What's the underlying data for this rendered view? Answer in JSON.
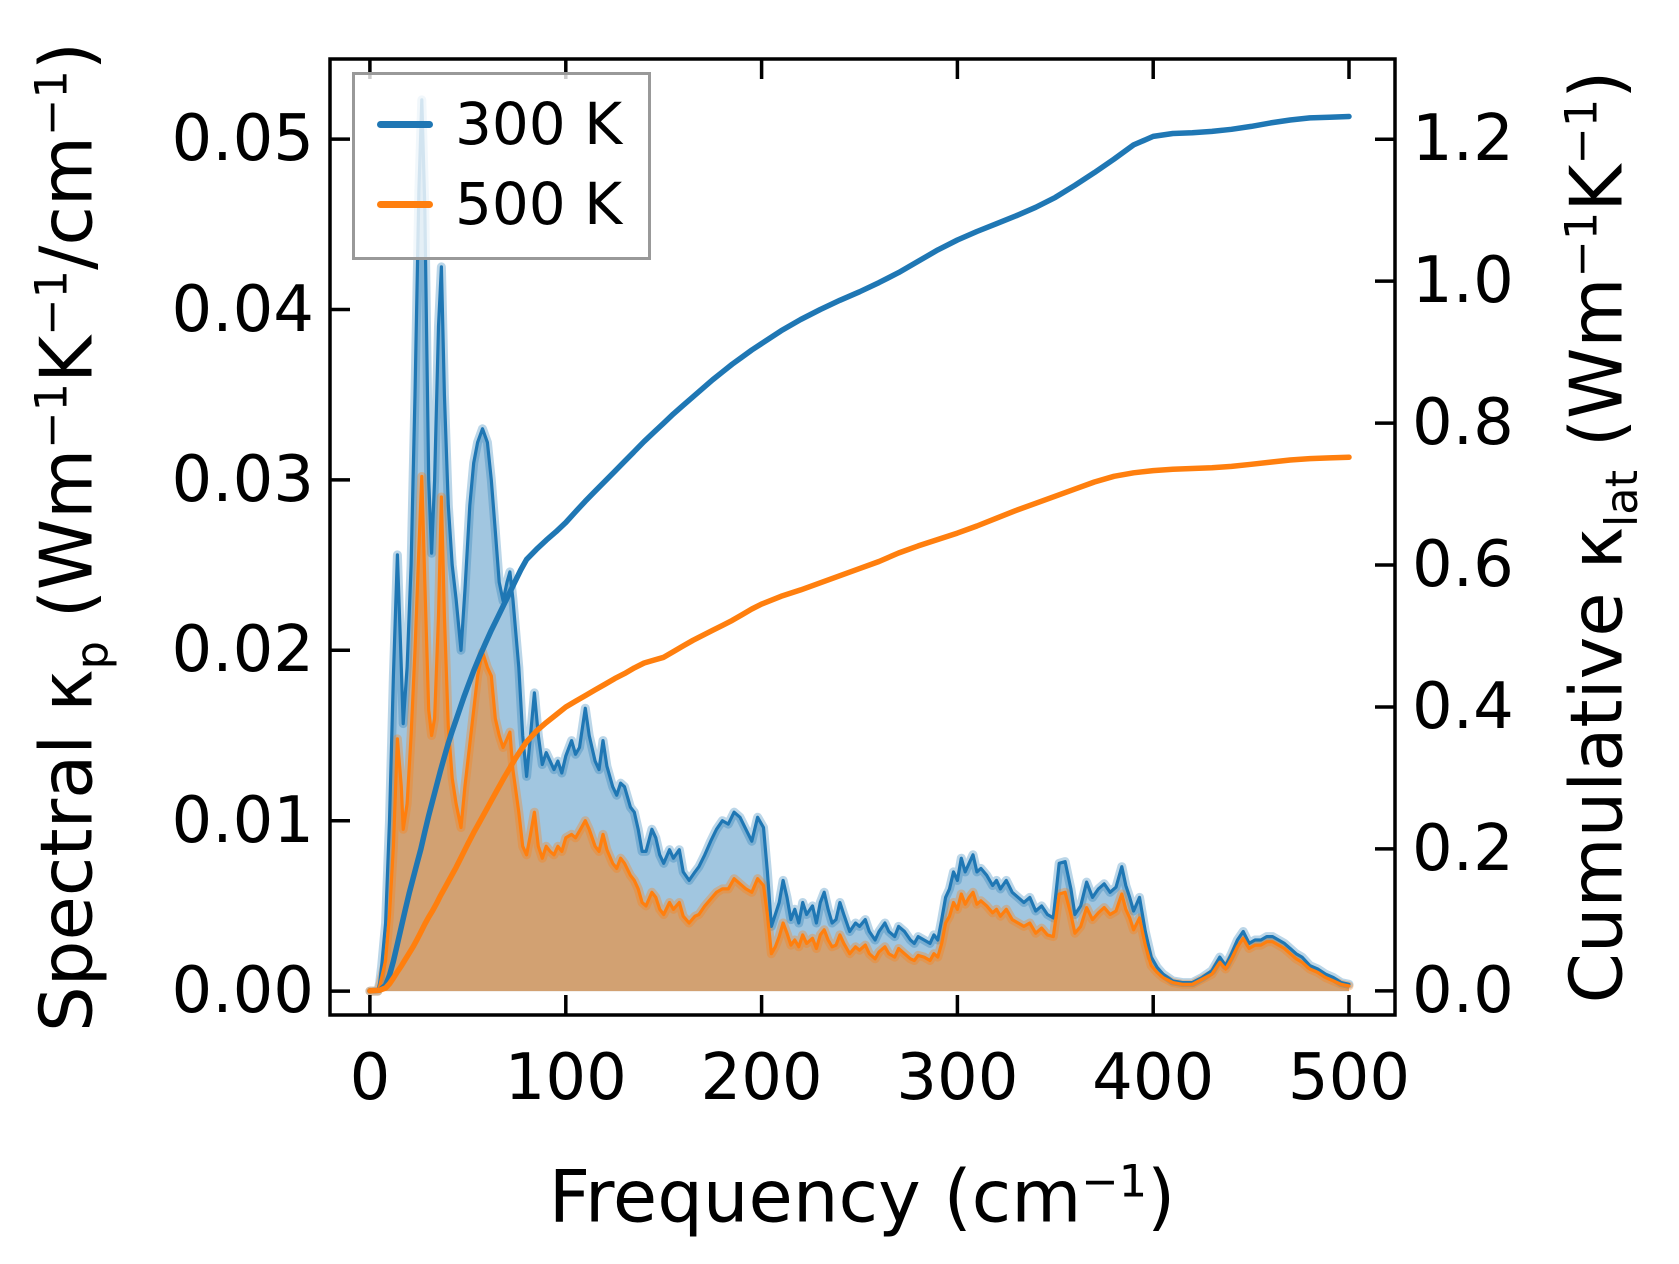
{
  "chart_data": {
    "type": "area",
    "subtype": "dual-axis spectral + cumulative thermal conductivity plot",
    "title": "",
    "grid": false,
    "xlabel_segments": [
      {
        "t": "Frequency (cm"
      },
      {
        "t": "−1",
        "sup": true
      },
      {
        "t": ")"
      }
    ],
    "ylabel_left_segments": [
      {
        "t": "Spectral κ"
      },
      {
        "t": "p",
        "sub": true
      },
      {
        "t": " (Wm"
      },
      {
        "t": "−1",
        "sup": true
      },
      {
        "t": "K"
      },
      {
        "t": "−1",
        "sup": true
      },
      {
        "t": "/cm"
      },
      {
        "t": "−1",
        "sup": true
      },
      {
        "t": ")"
      }
    ],
    "ylabel_right_segments": [
      {
        "t": "Cumulative κ"
      },
      {
        "t": "lat",
        "sub": true
      },
      {
        "t": " (Wm"
      },
      {
        "t": "−1",
        "sup": true
      },
      {
        "t": "K"
      },
      {
        "t": "−1",
        "sup": true
      },
      {
        "t": ")"
      }
    ],
    "xlim": [
      -20.4,
      523.5
    ],
    "ylim_left": [
      -0.0014,
      0.0547
    ],
    "ylim_right": [
      -0.034,
      1.313
    ],
    "x_ticks": {
      "values": [
        0,
        100,
        200,
        300,
        400,
        500
      ],
      "labels": [
        "0",
        "100",
        "200",
        "300",
        "400",
        "500"
      ]
    },
    "y_left_ticks": {
      "values": [
        0,
        0.01,
        0.02,
        0.03,
        0.04,
        0.05
      ],
      "labels": [
        "0.00",
        "0.01",
        "0.02",
        "0.03",
        "0.04",
        "0.05"
      ]
    },
    "y_right_ticks": {
      "values": [
        0,
        0.2,
        0.4,
        0.6,
        0.8,
        1.0,
        1.2
      ],
      "labels": [
        "0.0",
        "0.2",
        "0.4",
        "0.6",
        "0.8",
        "1.0",
        "1.2"
      ]
    },
    "legend": {
      "position": "upper left",
      "entries": [
        {
          "label": "300 K",
          "color": "#1f77b4"
        },
        {
          "label": "500 K",
          "color": "#ff7f0e"
        }
      ]
    },
    "colors": {
      "blue": "#1f77b4",
      "orange": "#ff7f0e",
      "spine": "#000000",
      "blue_fill": "rgba(31,119,180,0.42)",
      "orange_fill": "rgba(255,127,14,0.52)",
      "blue_halo": "rgba(31,119,180,0.30)",
      "orange_halo": "rgba(255,127,14,0.32)"
    },
    "spectral": {
      "axis": "left",
      "x": [
        0,
        4,
        5,
        6,
        8,
        10,
        12,
        14,
        16,
        17,
        19,
        21,
        23,
        25,
        26.5,
        28,
        30,
        31.5,
        33,
        35,
        36.5,
        38,
        40,
        42,
        44,
        46.5,
        48.5,
        51,
        53,
        55,
        57.5,
        60,
        62,
        64,
        66,
        68,
        70,
        71.5,
        73,
        76,
        78,
        80,
        82,
        84,
        86,
        88,
        90,
        92,
        94,
        96,
        98,
        100,
        103,
        105,
        107,
        110,
        112,
        115,
        117,
        119,
        121,
        124,
        126,
        128,
        130,
        133,
        135,
        137,
        139,
        141,
        144,
        146,
        148,
        150,
        153,
        155,
        158,
        160,
        163,
        166,
        168,
        171,
        174,
        177,
        180,
        183,
        186,
        189,
        192,
        195,
        198,
        201,
        203,
        205,
        207,
        209,
        211,
        213,
        215,
        217,
        219,
        221,
        223,
        226,
        228,
        230,
        232,
        234,
        236,
        238,
        240,
        242,
        245,
        248,
        250,
        253,
        255,
        258,
        260,
        263,
        265,
        268,
        270,
        273,
        276,
        278,
        280,
        283,
        286,
        288,
        290,
        292,
        294,
        296,
        298,
        300,
        302,
        304,
        306,
        308,
        310,
        312,
        315,
        318,
        320,
        322,
        325,
        328,
        331,
        334,
        337,
        340,
        343,
        346,
        349,
        352,
        355,
        358,
        360,
        363,
        366,
        369,
        372,
        375,
        378,
        381,
        384,
        386,
        388,
        390,
        393,
        396,
        399,
        402,
        405,
        410,
        415,
        420,
        425,
        430,
        434,
        437,
        440,
        443,
        446,
        449,
        452,
        455,
        458,
        461,
        464,
        467,
        470,
        473,
        476,
        480,
        484,
        488,
        492,
        496,
        500
      ],
      "series": [
        {
          "name": "300 K",
          "values": [
            0,
            0,
            0.0005,
            0.0015,
            0.004,
            0.01,
            0.0185,
            0.0256,
            0.019,
            0.0157,
            0.019,
            0.025,
            0.035,
            0.047,
            0.0523,
            0.046,
            0.03,
            0.0257,
            0.03,
            0.039,
            0.0425,
            0.035,
            0.0285,
            0.025,
            0.023,
            0.02,
            0.0235,
            0.0285,
            0.031,
            0.0322,
            0.033,
            0.0322,
            0.03,
            0.027,
            0.024,
            0.0229,
            0.024,
            0.0246,
            0.023,
            0.019,
            0.015,
            0.0126,
            0.015,
            0.0175,
            0.015,
            0.0133,
            0.014,
            0.0135,
            0.013,
            0.0135,
            0.0128,
            0.0138,
            0.0147,
            0.0139,
            0.0143,
            0.0166,
            0.015,
            0.0135,
            0.013,
            0.0147,
            0.0132,
            0.012,
            0.0115,
            0.0122,
            0.012,
            0.0108,
            0.0105,
            0.0095,
            0.0082,
            0.0082,
            0.0095,
            0.009,
            0.008,
            0.0075,
            0.0083,
            0.0078,
            0.0083,
            0.007,
            0.0065,
            0.007,
            0.0073,
            0.008,
            0.0088,
            0.0095,
            0.01,
            0.0098,
            0.0105,
            0.0102,
            0.0095,
            0.0088,
            0.0102,
            0.0096,
            0.007,
            0.0038,
            0.0045,
            0.0052,
            0.0065,
            0.0055,
            0.0042,
            0.0048,
            0.004,
            0.0052,
            0.0045,
            0.005,
            0.004,
            0.0052,
            0.0058,
            0.0048,
            0.004,
            0.0042,
            0.0052,
            0.0045,
            0.0035,
            0.004,
            0.0038,
            0.0042,
            0.0035,
            0.003,
            0.0035,
            0.004,
            0.0035,
            0.0032,
            0.0038,
            0.0035,
            0.003,
            0.0028,
            0.0032,
            0.003,
            0.0028,
            0.0033,
            0.003,
            0.0042,
            0.0055,
            0.006,
            0.007,
            0.0065,
            0.0078,
            0.007,
            0.0075,
            0.008,
            0.007,
            0.0072,
            0.0068,
            0.0062,
            0.0065,
            0.006,
            0.0065,
            0.0058,
            0.0055,
            0.0052,
            0.0055,
            0.0047,
            0.005,
            0.0045,
            0.0043,
            0.0075,
            0.0076,
            0.006,
            0.0045,
            0.005,
            0.0064,
            0.0055,
            0.006,
            0.0063,
            0.0058,
            0.0061,
            0.0073,
            0.0062,
            0.0055,
            0.0047,
            0.0055,
            0.0035,
            0.002,
            0.0014,
            0.001,
            0.0006,
            0.0005,
            0.0005,
            0.0008,
            0.0012,
            0.002,
            0.0015,
            0.0022,
            0.003,
            0.0035,
            0.0028,
            0.003,
            0.003,
            0.0032,
            0.0032,
            0.003,
            0.0028,
            0.0025,
            0.0022,
            0.002,
            0.0015,
            0.0013,
            0.001,
            0.0008,
            0.0005,
            0.0004
          ]
        },
        {
          "name": "500 K",
          "values": [
            0,
            0,
            0.0003,
            0.0008,
            0.0018,
            0.0045,
            0.0085,
            0.0148,
            0.012,
            0.0095,
            0.011,
            0.015,
            0.02,
            0.026,
            0.0302,
            0.024,
            0.0165,
            0.015,
            0.016,
            0.022,
            0.029,
            0.022,
            0.0155,
            0.0125,
            0.011,
            0.0096,
            0.012,
            0.0145,
            0.0165,
            0.0185,
            0.0199,
            0.019,
            0.0185,
            0.016,
            0.015,
            0.0143,
            0.0148,
            0.0152,
            0.013,
            0.0105,
            0.0085,
            0.008,
            0.0092,
            0.0105,
            0.0085,
            0.0078,
            0.0085,
            0.0082,
            0.008,
            0.0085,
            0.0082,
            0.009,
            0.0092,
            0.009,
            0.0094,
            0.01,
            0.0095,
            0.0085,
            0.0082,
            0.0092,
            0.0083,
            0.0075,
            0.0072,
            0.0078,
            0.0075,
            0.0068,
            0.0065,
            0.006,
            0.0052,
            0.005,
            0.0058,
            0.0055,
            0.0048,
            0.0045,
            0.0052,
            0.0048,
            0.0052,
            0.0044,
            0.004,
            0.0044,
            0.0045,
            0.005,
            0.0054,
            0.0058,
            0.006,
            0.006,
            0.0066,
            0.0063,
            0.006,
            0.0058,
            0.0066,
            0.0062,
            0.0045,
            0.0022,
            0.0026,
            0.0032,
            0.004,
            0.0034,
            0.0027,
            0.003,
            0.0026,
            0.0033,
            0.0028,
            0.0031,
            0.0025,
            0.0033,
            0.0036,
            0.003,
            0.0026,
            0.0027,
            0.0033,
            0.0028,
            0.0022,
            0.0026,
            0.0024,
            0.0027,
            0.0022,
            0.0019,
            0.0023,
            0.0026,
            0.0022,
            0.002,
            0.0025,
            0.0022,
            0.0019,
            0.0018,
            0.0021,
            0.002,
            0.0018,
            0.0022,
            0.002,
            0.0028,
            0.004,
            0.0044,
            0.0052,
            0.0048,
            0.0057,
            0.0051,
            0.0055,
            0.0058,
            0.0051,
            0.0053,
            0.005,
            0.0046,
            0.0048,
            0.0044,
            0.0048,
            0.0042,
            0.004,
            0.0038,
            0.004,
            0.0034,
            0.0037,
            0.0033,
            0.0032,
            0.0057,
            0.0058,
            0.0045,
            0.0034,
            0.0038,
            0.0049,
            0.0042,
            0.0046,
            0.0049,
            0.0045,
            0.0047,
            0.0057,
            0.0048,
            0.0043,
            0.0036,
            0.0043,
            0.0027,
            0.0015,
            0.0011,
            0.0008,
            0.0005,
            0.0004,
            0.0004,
            0.0007,
            0.001,
            0.0017,
            0.0013,
            0.0019,
            0.0026,
            0.0031,
            0.0025,
            0.0027,
            0.0027,
            0.0029,
            0.0029,
            0.0027,
            0.0025,
            0.0022,
            0.0019,
            0.0017,
            0.0013,
            0.0011,
            0.0008,
            0.0006,
            0.0004,
            0.0003
          ]
        }
      ]
    },
    "cumulative": {
      "axis": "right",
      "x": [
        0,
        5,
        8,
        10,
        12,
        14,
        16,
        18,
        20,
        22,
        24,
        26,
        28,
        30,
        32,
        34,
        36,
        38,
        40,
        42,
        44,
        46,
        48,
        50,
        53,
        56,
        59,
        62,
        65,
        68,
        71,
        74,
        77,
        80,
        85,
        90,
        95,
        100,
        105,
        110,
        115,
        120,
        125,
        130,
        135,
        140,
        145,
        150,
        155,
        160,
        165,
        170,
        175,
        180,
        185,
        190,
        195,
        200,
        210,
        220,
        230,
        240,
        250,
        260,
        270,
        280,
        290,
        300,
        310,
        320,
        330,
        340,
        350,
        360,
        370,
        380,
        390,
        400,
        410,
        420,
        430,
        440,
        450,
        460,
        470,
        480,
        490,
        500
      ],
      "series": [
        {
          "name": "300 K",
          "values": [
            0,
            0.001,
            0.008,
            0.022,
            0.042,
            0.066,
            0.09,
            0.114,
            0.137,
            0.158,
            0.179,
            0.2,
            0.224,
            0.247,
            0.268,
            0.289,
            0.31,
            0.33,
            0.349,
            0.366,
            0.382,
            0.398,
            0.414,
            0.429,
            0.451,
            0.471,
            0.49,
            0.508,
            0.525,
            0.542,
            0.559,
            0.576,
            0.593,
            0.608,
            0.622,
            0.635,
            0.647,
            0.66,
            0.675,
            0.69,
            0.704,
            0.718,
            0.732,
            0.746,
            0.76,
            0.774,
            0.787,
            0.8,
            0.813,
            0.825,
            0.837,
            0.849,
            0.861,
            0.872,
            0.883,
            0.893,
            0.903,
            0.912,
            0.93,
            0.946,
            0.96,
            0.973,
            0.985,
            0.998,
            1.012,
            1.028,
            1.044,
            1.058,
            1.07,
            1.081,
            1.092,
            1.104,
            1.118,
            1.135,
            1.153,
            1.172,
            1.192,
            1.204,
            1.208,
            1.209,
            1.211,
            1.214,
            1.218,
            1.223,
            1.227,
            1.23,
            1.231,
            1.232
          ]
        },
        {
          "name": "500 K",
          "values": [
            0,
            0.001,
            0.004,
            0.01,
            0.018,
            0.027,
            0.035,
            0.044,
            0.053,
            0.062,
            0.072,
            0.083,
            0.094,
            0.104,
            0.113,
            0.123,
            0.134,
            0.144,
            0.154,
            0.164,
            0.174,
            0.185,
            0.196,
            0.207,
            0.223,
            0.238,
            0.253,
            0.268,
            0.283,
            0.298,
            0.312,
            0.326,
            0.339,
            0.351,
            0.366,
            0.378,
            0.389,
            0.4,
            0.408,
            0.416,
            0.424,
            0.432,
            0.44,
            0.447,
            0.455,
            0.462,
            0.466,
            0.47,
            0.478,
            0.486,
            0.494,
            0.501,
            0.508,
            0.515,
            0.522,
            0.53,
            0.538,
            0.545,
            0.556,
            0.565,
            0.575,
            0.585,
            0.595,
            0.605,
            0.617,
            0.627,
            0.636,
            0.645,
            0.655,
            0.666,
            0.677,
            0.687,
            0.697,
            0.707,
            0.717,
            0.725,
            0.73,
            0.733,
            0.735,
            0.736,
            0.737,
            0.739,
            0.742,
            0.745,
            0.748,
            0.75,
            0.751,
            0.752
          ]
        }
      ]
    }
  }
}
